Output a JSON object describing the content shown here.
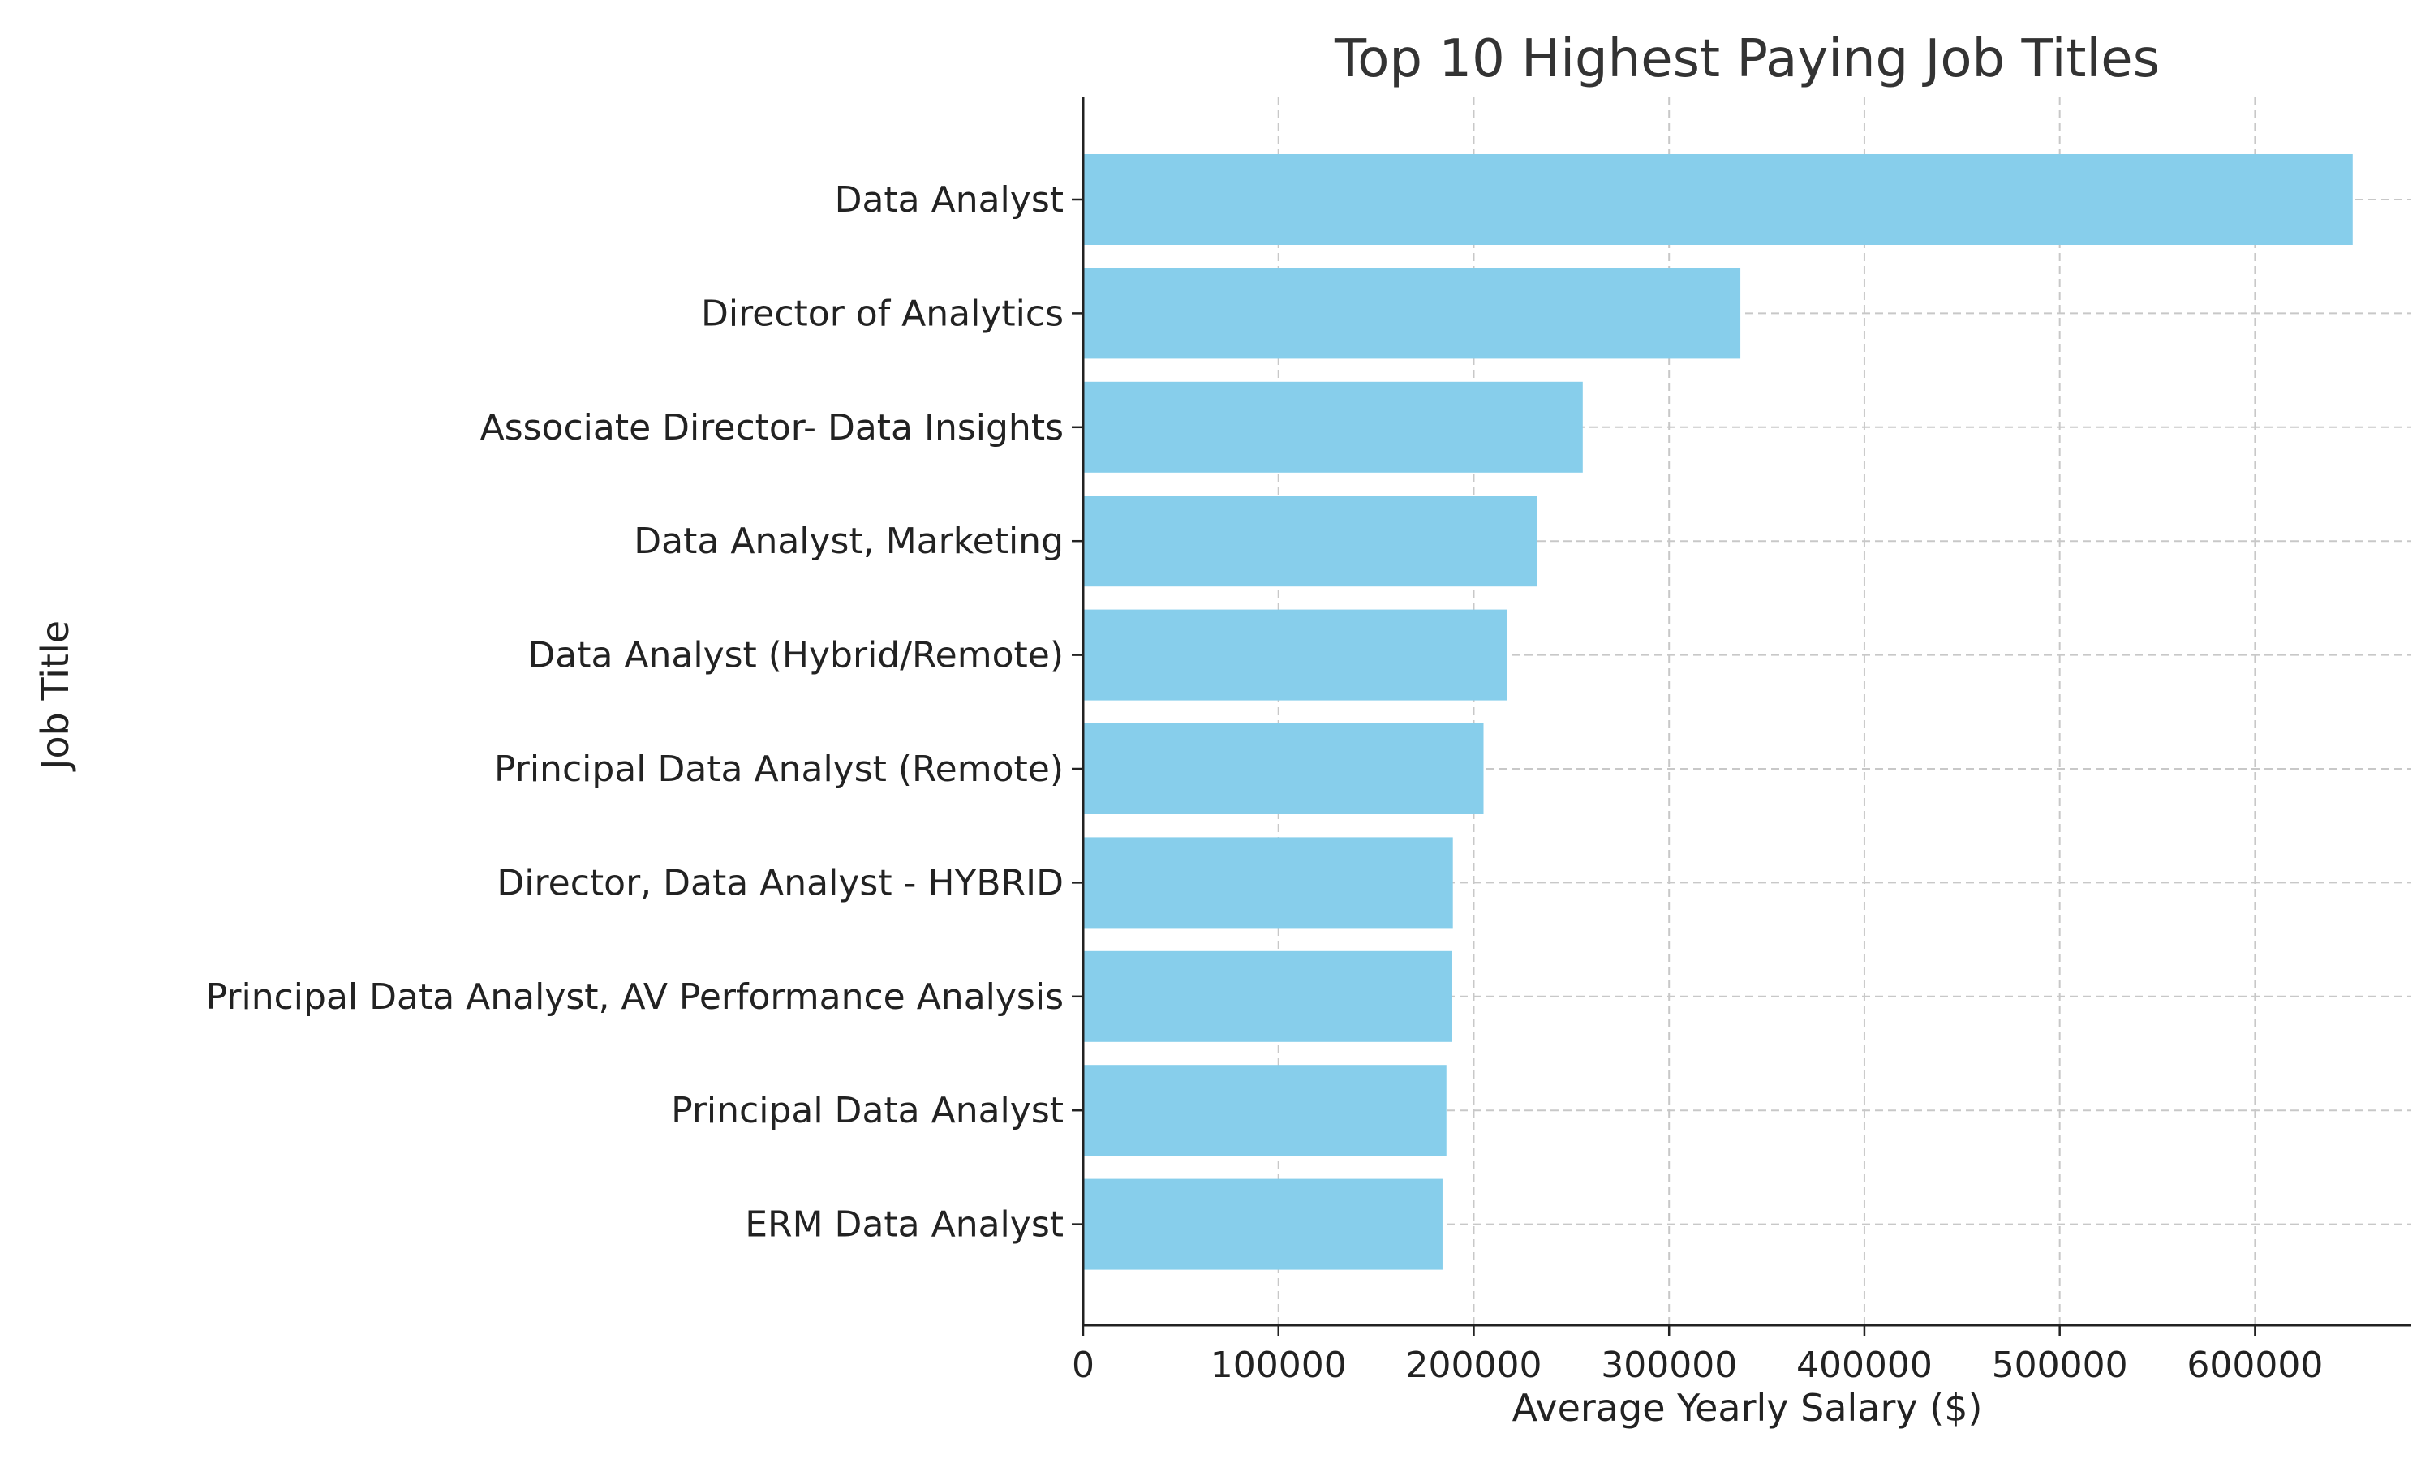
{
  "chart_data": {
    "type": "bar",
    "orientation": "horizontal",
    "title": "Top 10 Highest Paying Job Titles",
    "xlabel": "Average Yearly Salary ($)",
    "ylabel": "Job Title",
    "xlim": [
      0,
      680000
    ],
    "xticks": [
      0,
      100000,
      200000,
      300000,
      400000,
      500000,
      600000
    ],
    "xtick_labels": [
      "0",
      "100000",
      "200000",
      "300000",
      "400000",
      "500000",
      "600000"
    ],
    "grid": true,
    "bar_color": "#87ceeb",
    "categories": [
      "Data Analyst",
      "Director of Analytics",
      "Associate Director- Data Insights",
      "Data Analyst, Marketing",
      "Data Analyst (Hybrid/Remote)",
      "Principal Data Analyst (Remote)",
      "Director, Data Analyst - HYBRID",
      "Principal Data Analyst, AV Performance Analysis",
      "Principal Data Analyst",
      "ERM Data Analyst"
    ],
    "values": [
      650000,
      336500,
      255800,
      232400,
      217000,
      205000,
      189300,
      189000,
      186000,
      184000
    ]
  }
}
